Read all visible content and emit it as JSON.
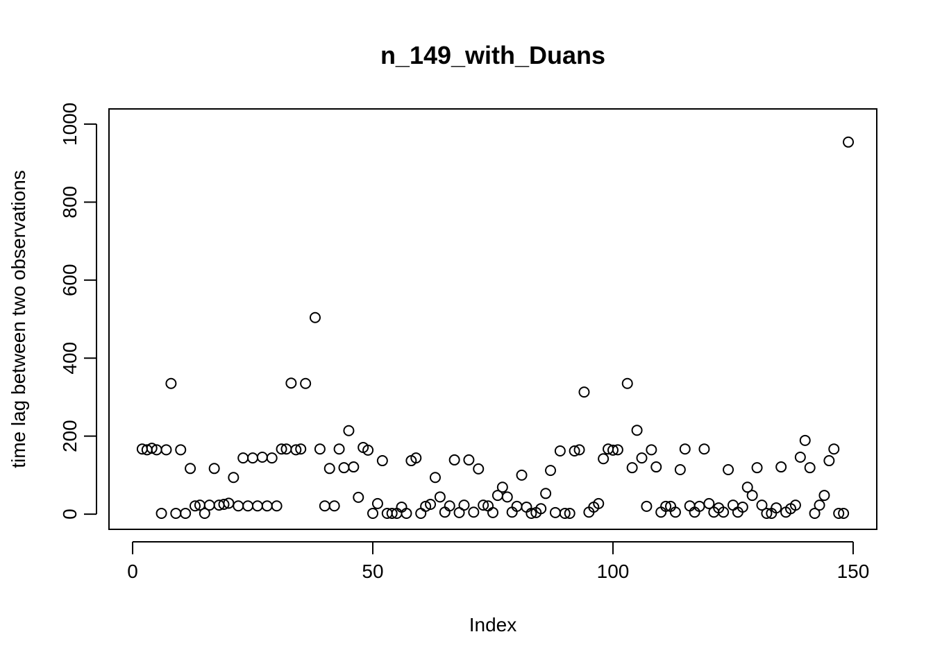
{
  "chart_data": {
    "type": "scatter",
    "title": "n_149_with_Duans",
    "x_label": "Index",
    "y_label": "time lag between two observations",
    "x": [
      1,
      2,
      3,
      4,
      5,
      6,
      7,
      8,
      9,
      10,
      11,
      12,
      13,
      14,
      15,
      16,
      17,
      18,
      19,
      20,
      21,
      22,
      23,
      24,
      25,
      26,
      27,
      28,
      29,
      30,
      31,
      32,
      33,
      34,
      35,
      36,
      37,
      38,
      39,
      40,
      41,
      42,
      43,
      44,
      45,
      46,
      47,
      48,
      49,
      50,
      51,
      52,
      53,
      54,
      55,
      56,
      57,
      58,
      59,
      60,
      61,
      62,
      63,
      64,
      65,
      66,
      67,
      68,
      69,
      70,
      71,
      72,
      73,
      74,
      75,
      76,
      77,
      78,
      79,
      80,
      81,
      82,
      83,
      84,
      85,
      86,
      87,
      88,
      89,
      90,
      91,
      92,
      93,
      94,
      95,
      96,
      97,
      98,
      99,
      100,
      101,
      102,
      103,
      104,
      105,
      106,
      107,
      108,
      109,
      110,
      111,
      112,
      113,
      114,
      115,
      116,
      117,
      118,
      119,
      120,
      121,
      122,
      123,
      124,
      125,
      126,
      127,
      128,
      129,
      130,
      131,
      132,
      133,
      134,
      135,
      136,
      137,
      138,
      139,
      140,
      141,
      142,
      143,
      144,
      145,
      146,
      147,
      148,
      149
    ],
    "values": [
      null,
      167,
      165,
      169,
      165,
      2,
      165,
      335,
      2,
      165,
      2,
      117,
      21,
      23,
      2,
      23,
      117,
      23,
      25,
      28,
      94,
      21,
      144,
      21,
      144,
      21,
      146,
      21,
      144,
      21,
      167,
      167,
      336,
      165,
      167,
      335,
      null,
      504,
      167,
      21,
      117,
      21,
      167,
      119,
      214,
      121,
      43,
      171,
      164,
      2,
      27,
      137,
      2,
      2,
      2,
      18,
      2,
      137,
      144,
      2,
      20,
      25,
      94,
      44,
      5,
      21,
      139,
      4,
      23,
      139,
      5,
      116,
      23,
      21,
      4,
      48,
      69,
      44,
      5,
      20,
      100,
      18,
      2,
      4,
      14,
      53,
      112,
      4,
      162,
      2,
      2,
      162,
      165,
      313,
      5,
      18,
      27,
      142,
      167,
      164,
      165,
      null,
      335,
      119,
      215,
      144,
      20,
      165,
      121,
      5,
      20,
      20,
      5,
      114,
      167,
      21,
      5,
      20,
      167,
      27,
      5,
      16,
      5,
      114,
      23,
      5,
      18,
      69,
      48,
      119,
      23,
      2,
      2,
      16,
      121,
      5,
      14,
      23,
      146,
      189,
      119,
      2,
      23,
      48,
      137,
      167,
      2,
      2,
      954
    ],
    "color": "#000000",
    "xlim": [
      -4.92,
      154.92
    ],
    "xticks": [
      0,
      50,
      100,
      150
    ],
    "ylim": [
      -39,
      1039
    ],
    "yticks": [
      0,
      200,
      400,
      600,
      800,
      1000
    ]
  }
}
